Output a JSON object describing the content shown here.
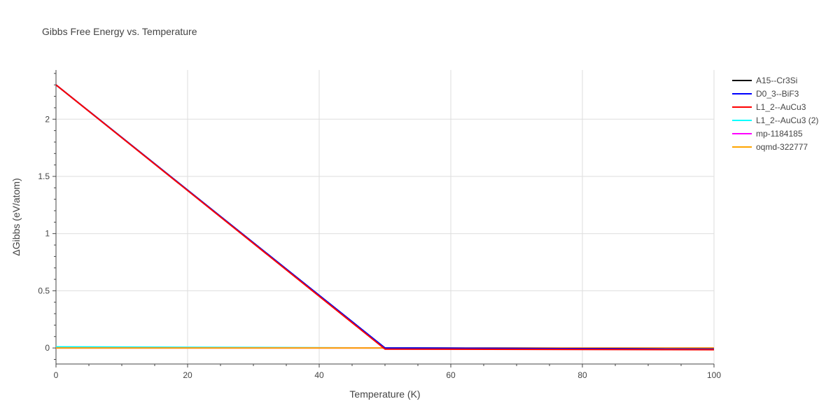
{
  "chart_data": {
    "type": "line",
    "title": "Gibbs Free Energy vs. Temperature",
    "xlabel": "Temperature (K)",
    "ylabel": "ΔGibbs (eV/atom)",
    "xlim": [
      0,
      100
    ],
    "ylim": [
      -0.14,
      2.43
    ],
    "xticks": [
      0,
      20,
      40,
      60,
      80,
      100
    ],
    "xtick_labels": [
      "0",
      "20",
      "40",
      "60",
      "80",
      "100"
    ],
    "yticks": [
      0,
      0.5,
      1,
      1.5,
      2
    ],
    "ytick_labels": [
      "0",
      "0.5",
      "1",
      "1.5",
      "2"
    ],
    "grid": true,
    "legend_position": "top-right",
    "series": [
      {
        "name": "A15--Cr3Si",
        "color": "#000000",
        "x": [
          0,
          50,
          100
        ],
        "y": [
          2.3,
          0.0,
          -0.01
        ]
      },
      {
        "name": "D0_3--BiF3",
        "color": "#0000ff",
        "x": [
          0,
          50,
          100
        ],
        "y": [
          2.3,
          0.0,
          -0.01
        ]
      },
      {
        "name": "L1_2--AuCu3",
        "color": "#ff0000",
        "x": [
          0,
          50,
          100
        ],
        "y": [
          2.3,
          -0.01,
          -0.015
        ]
      },
      {
        "name": "L1_2--AuCu3 (2)",
        "color": "#00ffff",
        "x": [
          0,
          50,
          100
        ],
        "y": [
          0.01,
          0.0,
          -0.005
        ]
      },
      {
        "name": "mp-1184185",
        "color": "#ff00ff",
        "x": [
          0,
          50,
          100
        ],
        "y": [
          0.0,
          0.0,
          0.0
        ]
      },
      {
        "name": "oqmd-322777",
        "color": "#ffa500",
        "x": [
          0,
          50,
          100
        ],
        "y": [
          0.0,
          0.0,
          0.0
        ]
      }
    ]
  }
}
